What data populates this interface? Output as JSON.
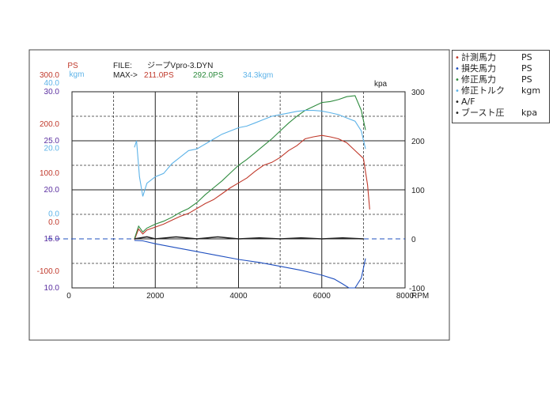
{
  "header": {
    "left_unit_ps": "PS",
    "left_unit_kgm": "kgm",
    "file_label": "FILE:",
    "file_name": "ジープVpro-3.DYN",
    "max_label": "MAX->",
    "max_ps_1": "211.0PS",
    "max_ps_2": "292.0PS",
    "max_kgm": "34.3kgm",
    "right_unit": "kpa"
  },
  "legend": {
    "items": [
      {
        "label": "計測馬力",
        "unit": "PS",
        "color": "#c0392b"
      },
      {
        "label": "損失馬力",
        "unit": "PS",
        "color": "#1f4fbf"
      },
      {
        "label": "修正馬力",
        "unit": "PS",
        "color": "#2e8b3e"
      },
      {
        "label": "修正トルク",
        "unit": "kgm",
        "color": "#5db3e8"
      },
      {
        "label": "A/F",
        "unit": "",
        "color": "#222222"
      },
      {
        "label": "ブースト圧",
        "unit": "kpa",
        "color": "#222222"
      }
    ]
  },
  "chart_data": {
    "type": "line",
    "xlabel": "RPM",
    "xlim": [
      0,
      8000
    ],
    "x_ticks": [
      "0",
      "2000",
      "4000",
      "6000",
      "8000"
    ],
    "axes": {
      "ps": {
        "color": "#c0392b",
        "ticks": [
          {
            "v": 300,
            "t": "300.0"
          },
          {
            "v": 200,
            "t": "200.0"
          },
          {
            "v": 100,
            "t": "100.0"
          },
          {
            "v": 0,
            "t": "0.0"
          },
          {
            "v": -100,
            "t": "-100.0"
          }
        ],
        "range": [
          -100,
          300
        ]
      },
      "kgm": {
        "color": "#5db3e8",
        "ticks": [
          {
            "v": 40,
            "t": "40.0"
          },
          {
            "v": 20,
            "t": "20.0"
          },
          {
            "v": 0,
            "t": "0.0"
          }
        ],
        "range": [
          -20,
          40
        ]
      },
      "af": {
        "color": "#5a2ea0",
        "ticks": [
          {
            "v": 30,
            "t": "30.0"
          },
          {
            "v": 25,
            "t": "25.0"
          },
          {
            "v": 20,
            "t": "20.0"
          },
          {
            "v": 15,
            "t": "15.0"
          },
          {
            "v": 10,
            "t": "10.0"
          }
        ],
        "range": [
          10,
          30
        ]
      },
      "kpa": {
        "color": "#222222",
        "ticks": [
          {
            "v": 300,
            "t": "300"
          },
          {
            "v": 200,
            "t": "200"
          },
          {
            "v": 100,
            "t": "100"
          },
          {
            "v": 0,
            "t": "0"
          },
          {
            "v": -100,
            "t": "-100"
          }
        ],
        "range": [
          -100,
          300
        ]
      }
    },
    "series": [
      {
        "name": "計測馬力",
        "axis": "ps",
        "color": "#c0392b",
        "points": [
          [
            1500,
            -2
          ],
          [
            1600,
            20
          ],
          [
            1700,
            10
          ],
          [
            1800,
            18
          ],
          [
            2000,
            24
          ],
          [
            2200,
            30
          ],
          [
            2400,
            38
          ],
          [
            2600,
            46
          ],
          [
            2800,
            52
          ],
          [
            3000,
            62
          ],
          [
            3200,
            72
          ],
          [
            3400,
            80
          ],
          [
            3600,
            92
          ],
          [
            3800,
            104
          ],
          [
            4000,
            114
          ],
          [
            4200,
            124
          ],
          [
            4400,
            138
          ],
          [
            4600,
            150
          ],
          [
            4800,
            156
          ],
          [
            5000,
            166
          ],
          [
            5200,
            180
          ],
          [
            5400,
            190
          ],
          [
            5600,
            204
          ],
          [
            5800,
            208
          ],
          [
            6000,
            211
          ],
          [
            6200,
            208
          ],
          [
            6400,
            204
          ],
          [
            6600,
            196
          ],
          [
            6800,
            180
          ],
          [
            7000,
            164
          ],
          [
            7100,
            110
          ],
          [
            7150,
            60
          ]
        ]
      },
      {
        "name": "損失馬力",
        "axis": "ps",
        "color": "#1f4fbf",
        "points": [
          [
            1500,
            -3
          ],
          [
            1700,
            -4
          ],
          [
            2000,
            -10
          ],
          [
            2500,
            -18
          ],
          [
            3000,
            -26
          ],
          [
            3500,
            -34
          ],
          [
            4000,
            -42
          ],
          [
            4500,
            -48
          ],
          [
            5000,
            -56
          ],
          [
            5500,
            -64
          ],
          [
            6000,
            -74
          ],
          [
            6300,
            -82
          ],
          [
            6500,
            -92
          ],
          [
            6650,
            -100
          ],
          [
            6800,
            -100
          ],
          [
            6950,
            -80
          ],
          [
            7050,
            -40
          ]
        ]
      },
      {
        "name": "修正馬力",
        "axis": "ps",
        "color": "#2e8b3e",
        "points": [
          [
            1500,
            0
          ],
          [
            1600,
            26
          ],
          [
            1700,
            14
          ],
          [
            1800,
            22
          ],
          [
            2000,
            30
          ],
          [
            2200,
            36
          ],
          [
            2400,
            44
          ],
          [
            2600,
            54
          ],
          [
            2800,
            62
          ],
          [
            3000,
            74
          ],
          [
            3200,
            90
          ],
          [
            3400,
            104
          ],
          [
            3600,
            118
          ],
          [
            3800,
            134
          ],
          [
            4000,
            150
          ],
          [
            4200,
            162
          ],
          [
            4400,
            176
          ],
          [
            4600,
            190
          ],
          [
            4800,
            204
          ],
          [
            5000,
            220
          ],
          [
            5200,
            236
          ],
          [
            5400,
            250
          ],
          [
            5600,
            262
          ],
          [
            5800,
            270
          ],
          [
            6000,
            278
          ],
          [
            6200,
            280
          ],
          [
            6400,
            284
          ],
          [
            6600,
            290
          ],
          [
            6800,
            292
          ],
          [
            6950,
            262
          ],
          [
            7050,
            222
          ]
        ]
      },
      {
        "name": "修正トルク",
        "axis": "kgm",
        "color": "#5db3e8",
        "points": [
          [
            1500,
            23
          ],
          [
            1550,
            25
          ],
          [
            1620,
            14
          ],
          [
            1700,
            8
          ],
          [
            1800,
            12
          ],
          [
            2000,
            14
          ],
          [
            2200,
            15
          ],
          [
            2400,
            18
          ],
          [
            2600,
            20
          ],
          [
            2800,
            22
          ],
          [
            3000,
            22.5
          ],
          [
            3200,
            24
          ],
          [
            3400,
            25.5
          ],
          [
            3600,
            27
          ],
          [
            3800,
            28
          ],
          [
            4000,
            29
          ],
          [
            4200,
            29.5
          ],
          [
            4400,
            30.5
          ],
          [
            4600,
            31.5
          ],
          [
            4800,
            32.5
          ],
          [
            5000,
            33
          ],
          [
            5200,
            33.5
          ],
          [
            5400,
            34
          ],
          [
            5600,
            34.3
          ],
          [
            5800,
            34.3
          ],
          [
            6000,
            34.1
          ],
          [
            6200,
            33.6
          ],
          [
            6400,
            33
          ],
          [
            6600,
            32
          ],
          [
            6800,
            31
          ],
          [
            6950,
            28
          ],
          [
            7050,
            22.5
          ]
        ]
      },
      {
        "name": "A/F",
        "axis": "af",
        "color": "#222222",
        "points": [
          [
            1500,
            15
          ],
          [
            1800,
            15.2
          ],
          [
            2000,
            15
          ],
          [
            2500,
            15.2
          ],
          [
            3000,
            15
          ],
          [
            3500,
            15.2
          ],
          [
            4000,
            15
          ],
          [
            4500,
            15.1
          ],
          [
            5000,
            15
          ],
          [
            5500,
            15.1
          ],
          [
            6000,
            15
          ],
          [
            6500,
            15.1
          ],
          [
            7000,
            15
          ]
        ]
      },
      {
        "name": "ブースト圧",
        "axis": "kpa",
        "color": "#222222",
        "points": [
          [
            1500,
            0
          ],
          [
            2000,
            0
          ],
          [
            3000,
            0
          ],
          [
            4000,
            0
          ],
          [
            5000,
            0
          ],
          [
            6000,
            0
          ],
          [
            7000,
            0
          ]
        ]
      }
    ],
    "grid": true
  }
}
